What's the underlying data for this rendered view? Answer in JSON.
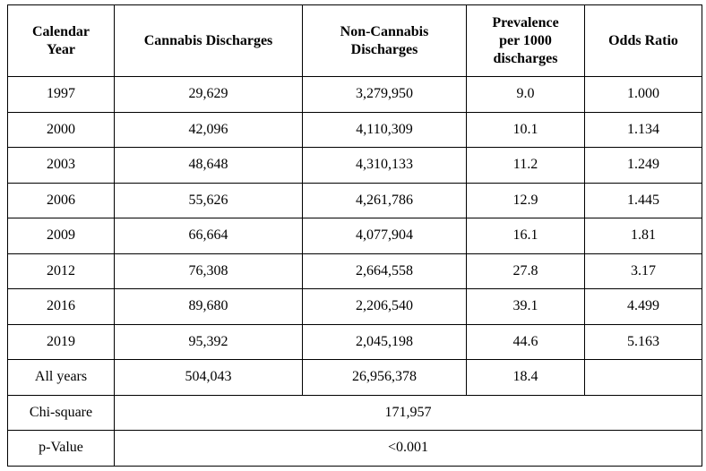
{
  "table": {
    "headers": [
      {
        "lines": [
          "Calendar",
          "Year"
        ]
      },
      {
        "lines": [
          "Cannabis Discharges"
        ]
      },
      {
        "lines": [
          "Non-Cannabis",
          "Discharges"
        ]
      },
      {
        "lines": [
          "Prevalence",
          "per 1000",
          "discharges"
        ]
      },
      {
        "lines": [
          "Odds Ratio"
        ]
      }
    ],
    "rows": [
      [
        "1997",
        "29,629",
        "3,279,950",
        "9.0",
        "1.000"
      ],
      [
        "2000",
        "42,096",
        "4,110,309",
        "10.1",
        "1.134"
      ],
      [
        "2003",
        "48,648",
        "4,310,133",
        "11.2",
        "1.249"
      ],
      [
        "2006",
        "55,626",
        "4,261,786",
        "12.9",
        "1.445"
      ],
      [
        "2009",
        "66,664",
        "4,077,904",
        "16.1",
        "1.81"
      ],
      [
        "2012",
        "76,308",
        "2,664,558",
        "27.8",
        "3.17"
      ],
      [
        "2016",
        "89,680",
        "2,206,540",
        "39.1",
        "4.499"
      ],
      [
        "2019",
        "95,392",
        "2,045,198",
        "44.6",
        "5.163"
      ],
      [
        "All years",
        "504,043",
        "26,956,378",
        "18.4",
        ""
      ]
    ],
    "summary": [
      {
        "label": "Chi-square",
        "value": "171,957"
      },
      {
        "label": "p-Value",
        "value": "<0.001"
      }
    ]
  }
}
